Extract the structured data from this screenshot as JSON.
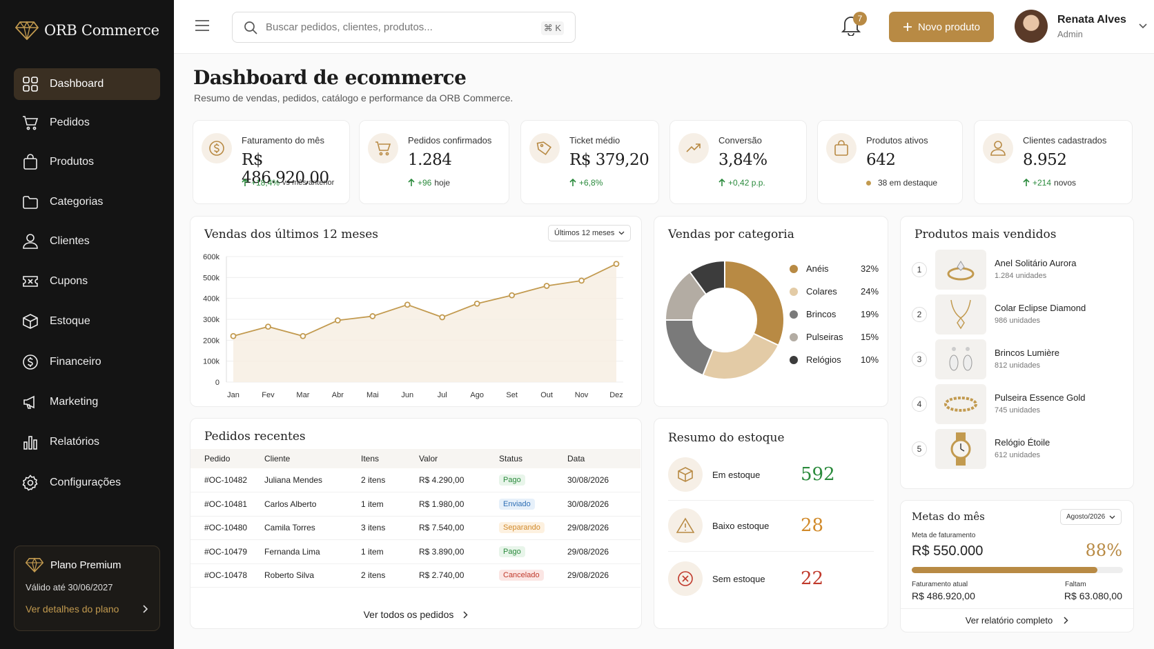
{
  "brand": {
    "name": "ORB Commerce"
  },
  "sidebar": {
    "items": [
      {
        "label": "Dashboard",
        "icon": "grid-icon",
        "active": true
      },
      {
        "label": "Pedidos",
        "icon": "cart-icon"
      },
      {
        "label": "Produtos",
        "icon": "bag-icon"
      },
      {
        "label": "Categorias",
        "icon": "folder-icon"
      },
      {
        "label": "Clientes",
        "icon": "user-icon"
      },
      {
        "label": "Cupons",
        "icon": "ticket-icon"
      },
      {
        "label": "Estoque",
        "icon": "box-icon"
      },
      {
        "label": "Financeiro",
        "icon": "dollar-icon"
      },
      {
        "label": "Marketing",
        "icon": "megaphone-icon"
      },
      {
        "label": "Relatórios",
        "icon": "bar-chart-icon"
      },
      {
        "label": "Configurações",
        "icon": "gear-icon"
      }
    ],
    "plan": {
      "title": "Plano Premium",
      "valid": "Válido até 30/06/2027",
      "link": "Ver detalhes do plano"
    }
  },
  "header": {
    "search_placeholder": "Buscar pedidos, clientes, produtos...",
    "shortcut": "⌘ K",
    "notifications": "7",
    "new_product": "Novo produto",
    "user_name": "Renata Alves",
    "user_role": "Admin"
  },
  "page": {
    "title": "Dashboard de ecommerce",
    "subtitle": "Resumo de vendas, pedidos, catálogo e performance da ORB Commerce."
  },
  "kpis": [
    {
      "label": "Faturamento do mês",
      "value": "R$ 486.920,00",
      "delta": "+18,4%",
      "note": "vs mês anterior",
      "icon": "dollar-icon"
    },
    {
      "label": "Pedidos confirmados",
      "value": "1.284",
      "delta": "+96",
      "note": "hoje",
      "icon": "cart-icon"
    },
    {
      "label": "Ticket médio",
      "value": "R$ 379,20",
      "delta": "+6,8%",
      "note": "",
      "icon": "tag-icon"
    },
    {
      "label": "Conversão",
      "value": "3,84%",
      "delta": "+0,42 p.p.",
      "note": "",
      "icon": "trend-icon"
    },
    {
      "label": "Produtos ativos",
      "value": "642",
      "delta": "",
      "note": "38 em destaque",
      "icon": "bag-icon"
    },
    {
      "label": "Clientes cadastrados",
      "value": "8.952",
      "delta": "+214",
      "note": "novos",
      "icon": "user-icon"
    }
  ],
  "sales_chart": {
    "title": "Vendas dos últimos 12 meses",
    "period": "Últimos 12 meses",
    "accent": "#c29a4f"
  },
  "category_chart": {
    "title": "Vendas por categoria"
  },
  "chart_data": [
    {
      "type": "line",
      "title": "Vendas dos últimos 12 meses",
      "categories": [
        "Jan",
        "Fev",
        "Mar",
        "Abr",
        "Mai",
        "Jun",
        "Jul",
        "Ago",
        "Set",
        "Out",
        "Nov",
        "Dez"
      ],
      "values": [
        220000,
        265000,
        220000,
        295000,
        315000,
        370000,
        310000,
        375000,
        415000,
        460000,
        485000,
        565000
      ],
      "yticks": [
        "0",
        "100k",
        "200k",
        "300k",
        "400k",
        "500k",
        "600k"
      ],
      "ylim": [
        0,
        600000
      ],
      "grid": true
    },
    {
      "type": "pie",
      "title": "Vendas por categoria",
      "labels": [
        "Anéis",
        "Colares",
        "Brincos",
        "Pulseiras",
        "Relógios"
      ],
      "values": [
        32,
        24,
        19,
        15,
        10
      ],
      "display": [
        "32%",
        "24%",
        "19%",
        "15%",
        "10%"
      ],
      "colors": [
        "#b88a44",
        "#e3cba6",
        "#7a7a7a",
        "#b3aca3",
        "#3c3c3c"
      ],
      "legend": "right"
    }
  ],
  "orders": {
    "title": "Pedidos recentes",
    "columns": [
      "Pedido",
      "Cliente",
      "Itens",
      "Valor",
      "Status",
      "Data"
    ],
    "rows": [
      {
        "id": "#OC-10482",
        "client": "Juliana Mendes",
        "items": "2 itens",
        "value": "R$ 4.290,00",
        "status": "Pago",
        "date": "30/08/2026"
      },
      {
        "id": "#OC-10481",
        "client": "Carlos Alberto",
        "items": "1 item",
        "value": "R$ 1.980,00",
        "status": "Enviado",
        "date": "30/08/2026"
      },
      {
        "id": "#OC-10480",
        "client": "Camila Torres",
        "items": "3 itens",
        "value": "R$ 7.540,00",
        "status": "Separando",
        "date": "29/08/2026"
      },
      {
        "id": "#OC-10479",
        "client": "Fernanda Lima",
        "items": "1 item",
        "value": "R$ 3.890,00",
        "status": "Pago",
        "date": "29/08/2026"
      },
      {
        "id": "#OC-10478",
        "client": "Roberto Silva",
        "items": "2 itens",
        "value": "R$ 2.740,00",
        "status": "Cancelado",
        "date": "29/08/2026"
      }
    ],
    "link": "Ver todos os pedidos"
  },
  "status_colors": {
    "Pago": [
      "#2a8a3c",
      "#e8f5ea"
    ],
    "Enviado": [
      "#2f6fb5",
      "#e6f0fa"
    ],
    "Separando": [
      "#d18a2a",
      "#fdf1e0"
    ],
    "Cancelado": [
      "#c0392b",
      "#fbe6e4"
    ]
  },
  "stock": {
    "title": "Resumo do estoque",
    "rows": [
      {
        "label": "Em estoque",
        "value": "592",
        "color": "#2a8a3c",
        "icon": "box-icon"
      },
      {
        "label": "Baixo estoque",
        "value": "28",
        "color": "#d18a2a",
        "icon": "warning-icon"
      },
      {
        "label": "Sem estoque",
        "value": "22",
        "color": "#c0392b",
        "icon": "x-circle-icon"
      }
    ]
  },
  "top_products": {
    "title": "Produtos mais vendidos",
    "items": [
      {
        "rank": "1",
        "name": "Anel Solitário Aurora",
        "units": "1.284 unidades",
        "icon": "ring-icon"
      },
      {
        "rank": "2",
        "name": "Colar Eclipse Diamond",
        "units": "986 unidades",
        "icon": "necklace-icon"
      },
      {
        "rank": "3",
        "name": "Brincos Lumière",
        "units": "812 unidades",
        "icon": "earrings-icon"
      },
      {
        "rank": "4",
        "name": "Pulseira Essence Gold",
        "units": "745 unidades",
        "icon": "bracelet-icon"
      },
      {
        "rank": "5",
        "name": "Relógio Étoile",
        "units": "612 unidades",
        "icon": "watch-icon"
      }
    ]
  },
  "goals": {
    "title": "Metas do mês",
    "period": "Agosto/2026",
    "label": "Meta de faturamento",
    "target": "R$ 550.000",
    "percent": "88%",
    "progress": 0.88,
    "current_label": "Faturamento atual",
    "current": "R$ 486.920,00",
    "remaining_label": "Faltam",
    "remaining": "R$ 63.080,00",
    "link": "Ver relatório completo"
  }
}
